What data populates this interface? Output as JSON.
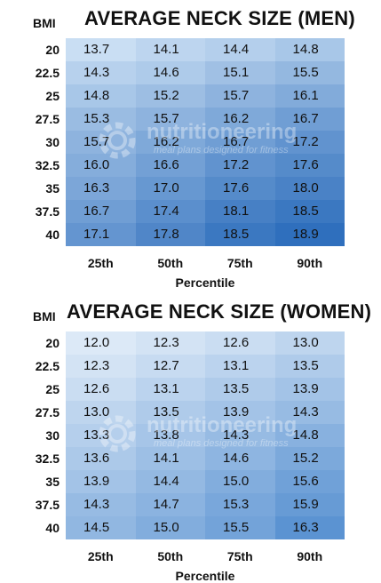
{
  "chart_data": [
    {
      "type": "heatmap",
      "title": "AVERAGE NECK SIZE (MEN)",
      "row_header": "BMI",
      "rows": [
        "20",
        "22.5",
        "25",
        "27.5",
        "30",
        "32.5",
        "35",
        "37.5",
        "40"
      ],
      "columns": [
        "25th",
        "50th",
        "75th",
        "90th"
      ],
      "xlabel": "Percentile",
      "values": [
        [
          13.7,
          14.1,
          14.4,
          14.8
        ],
        [
          14.3,
          14.6,
          15.1,
          15.5
        ],
        [
          14.8,
          15.2,
          15.7,
          16.1
        ],
        [
          15.3,
          15.7,
          16.2,
          16.7
        ],
        [
          15.7,
          16.2,
          16.7,
          17.2
        ],
        [
          16.0,
          16.6,
          17.2,
          17.6
        ],
        [
          16.3,
          17.0,
          17.6,
          18.0
        ],
        [
          16.7,
          17.4,
          18.1,
          18.5
        ],
        [
          17.1,
          17.8,
          18.5,
          18.9
        ]
      ],
      "color_low": "#c9def3",
      "color_high": "#2f6fbd"
    },
    {
      "type": "heatmap",
      "title": "AVERAGE NECK SIZE (WOMEN)",
      "row_header": "BMI",
      "rows": [
        "20",
        "22.5",
        "25",
        "27.5",
        "30",
        "32.5",
        "35",
        "37.5",
        "40"
      ],
      "columns": [
        "25th",
        "50th",
        "75th",
        "90th"
      ],
      "xlabel": "Percentile",
      "values": [
        [
          12.0,
          12.3,
          12.6,
          13.0
        ],
        [
          12.3,
          12.7,
          13.1,
          13.5
        ],
        [
          12.6,
          13.1,
          13.5,
          13.9
        ],
        [
          13.0,
          13.5,
          13.9,
          14.3
        ],
        [
          13.3,
          13.8,
          14.3,
          14.8
        ],
        [
          13.6,
          14.1,
          14.6,
          15.2
        ],
        [
          13.9,
          14.4,
          15.0,
          15.6
        ],
        [
          14.3,
          14.7,
          15.3,
          15.9
        ],
        [
          14.5,
          15.0,
          15.5,
          16.3
        ]
      ],
      "color_low": "#dce9f7",
      "color_high": "#5b93d2"
    }
  ],
  "watermark": {
    "brand": "nutritioneering",
    "tagline": "meal plans designed for fitness"
  }
}
